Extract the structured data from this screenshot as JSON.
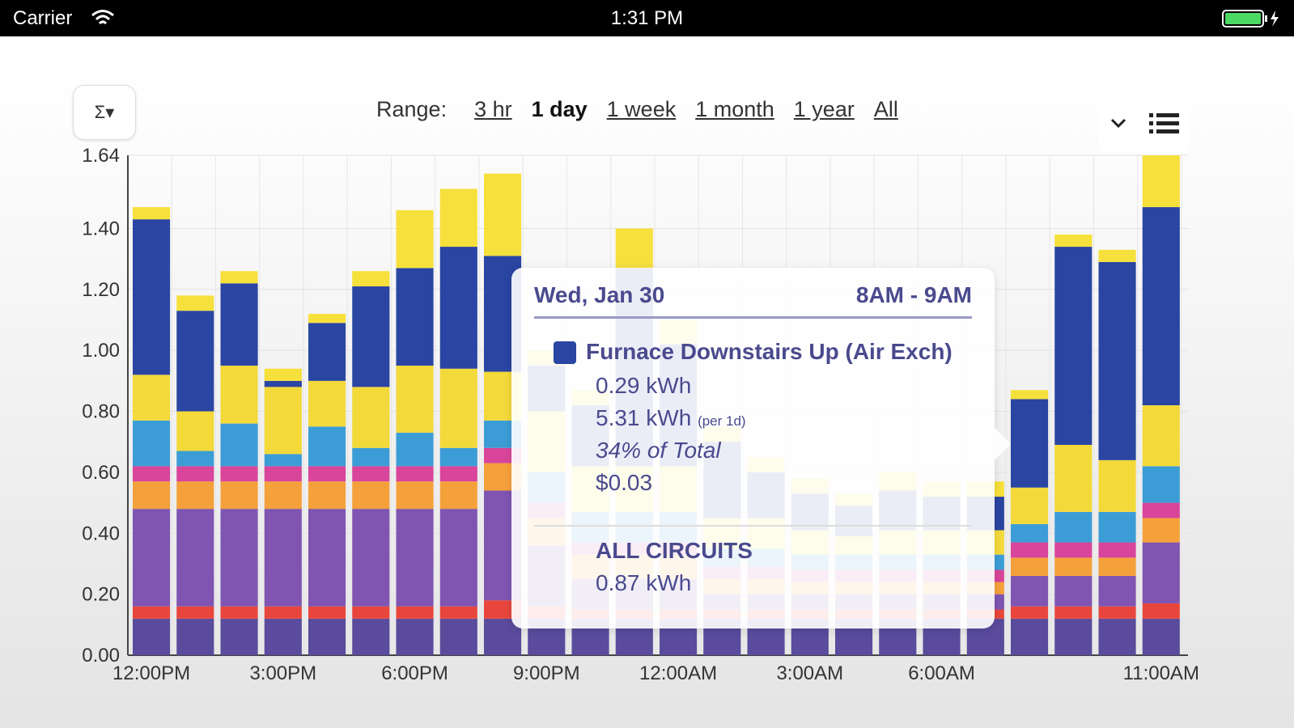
{
  "status": {
    "carrier": "Carrier",
    "time": "1:31 PM"
  },
  "controls": {
    "sigma": "Σ▾",
    "range_label": "Range:",
    "ranges": [
      "3 hr",
      "1 day",
      "1 week",
      "1 month",
      "1 year",
      "All"
    ],
    "selected": "1 day"
  },
  "chart_data": {
    "type": "bar",
    "stacked": true,
    "categories": [
      "12:00PM",
      null,
      null,
      "3:00PM",
      null,
      null,
      "6:00PM",
      null,
      null,
      "9:00PM",
      null,
      null,
      "12:00AM",
      null,
      null,
      "3:00AM",
      null,
      null,
      "6:00AM",
      null,
      null,
      null,
      null,
      "11:00AM"
    ],
    "ylim": [
      0,
      1.64
    ],
    "yticks": [
      {
        "value": 0,
        "label": "0.00"
      },
      {
        "value": 0.2,
        "label": "0.20"
      },
      {
        "value": 0.4,
        "label": "0.40"
      },
      {
        "value": 0.6,
        "label": "0.60"
      },
      {
        "value": 0.8,
        "label": "0.80"
      },
      {
        "value": 1,
        "label": "1.00"
      },
      {
        "value": 1.2,
        "label": "1.20"
      },
      {
        "value": 1.4,
        "label": "1.40"
      },
      1.64
    ],
    "grid": true,
    "series": [
      {
        "color": "#5a4b9c",
        "values": [
          0.12,
          0.12,
          0.12,
          0.12,
          0.12,
          0.12,
          0.12,
          0.12,
          0.12,
          0.12,
          0.12,
          0.12,
          0.12,
          0.12,
          0.12,
          0.12,
          0.12,
          0.12,
          0.12,
          0.12,
          0.12,
          0.12,
          0.12,
          0.12
        ]
      },
      {
        "color": "#e8463c",
        "values": [
          0.04,
          0.04,
          0.04,
          0.04,
          0.04,
          0.04,
          0.04,
          0.04,
          0.06,
          0.04,
          0.03,
          0.03,
          0.03,
          0.03,
          0.03,
          0.03,
          0.03,
          0.03,
          0.03,
          0.03,
          0.04,
          0.04,
          0.04,
          0.05
        ]
      },
      {
        "color": "#7f55b1",
        "values": [
          0.32,
          0.32,
          0.32,
          0.32,
          0.32,
          0.32,
          0.32,
          0.32,
          0.36,
          0.2,
          0.1,
          0.1,
          0.1,
          0.05,
          0.05,
          0.05,
          0.05,
          0.05,
          0.05,
          0.05,
          0.1,
          0.1,
          0.1,
          0.2
        ]
      },
      {
        "color": "#f5a13b",
        "values": [
          0.09,
          0.09,
          0.09,
          0.09,
          0.09,
          0.09,
          0.09,
          0.09,
          0.09,
          0.09,
          0.08,
          0.08,
          0.08,
          0.05,
          0.05,
          0.04,
          0.04,
          0.04,
          0.04,
          0.04,
          0.06,
          0.06,
          0.06,
          0.08
        ]
      },
      {
        "color": "#d8459a",
        "values": [
          0.05,
          0.05,
          0.05,
          0.05,
          0.05,
          0.05,
          0.05,
          0.05,
          0.05,
          0.05,
          0.04,
          0.04,
          0.04,
          0.04,
          0.04,
          0.04,
          0.04,
          0.04,
          0.04,
          0.04,
          0.05,
          0.05,
          0.05,
          0.05
        ]
      },
      {
        "color": "#3c9dd6",
        "values": [
          0.15,
          0.05,
          0.14,
          0.04,
          0.13,
          0.06,
          0.11,
          0.06,
          0.09,
          0.1,
          0.1,
          0.1,
          0.1,
          0.06,
          0.06,
          0.05,
          0.05,
          0.05,
          0.05,
          0.05,
          0.06,
          0.1,
          0.1,
          0.12
        ]
      },
      {
        "color": "#f3d93a",
        "values": [
          0.15,
          0.13,
          0.19,
          0.22,
          0.15,
          0.2,
          0.22,
          0.26,
          0.16,
          0.2,
          0.15,
          0.15,
          0.15,
          0.1,
          0.1,
          0.08,
          0.06,
          0.08,
          0.08,
          0.08,
          0.12,
          0.22,
          0.17,
          0.2
        ]
      },
      {
        "color": "#2a45a2",
        "values": [
          0.51,
          0.33,
          0.27,
          0.02,
          0.19,
          0.33,
          0.32,
          0.4,
          0.38,
          0.15,
          0.2,
          0.65,
          0.4,
          0.25,
          0.15,
          0.12,
          0.1,
          0.13,
          0.11,
          0.11,
          0.29,
          0.65,
          0.65,
          0.65
        ]
      },
      {
        "color": "#f6e03c",
        "values": [
          0.04,
          0.05,
          0.04,
          0.04,
          0.03,
          0.05,
          0.19,
          0.19,
          0.27,
          0.05,
          0.05,
          0.13,
          0.08,
          0.05,
          0.05,
          0.05,
          0.04,
          0.06,
          0.05,
          0.05,
          0.03,
          0.04,
          0.04,
          0.17
        ]
      }
    ]
  },
  "tooltip": {
    "date": "Wed, Jan 30",
    "time": "8AM - 9AM",
    "circuit": "Furnace Downstairs Up (Air Exch)",
    "energy": "0.29 kWh",
    "daily": "5.31 kWh",
    "daily_note": "(per 1d)",
    "share": "34% of Total",
    "cost": "$0.03",
    "total_label": "ALL CIRCUITS",
    "total": "0.87 kWh"
  }
}
